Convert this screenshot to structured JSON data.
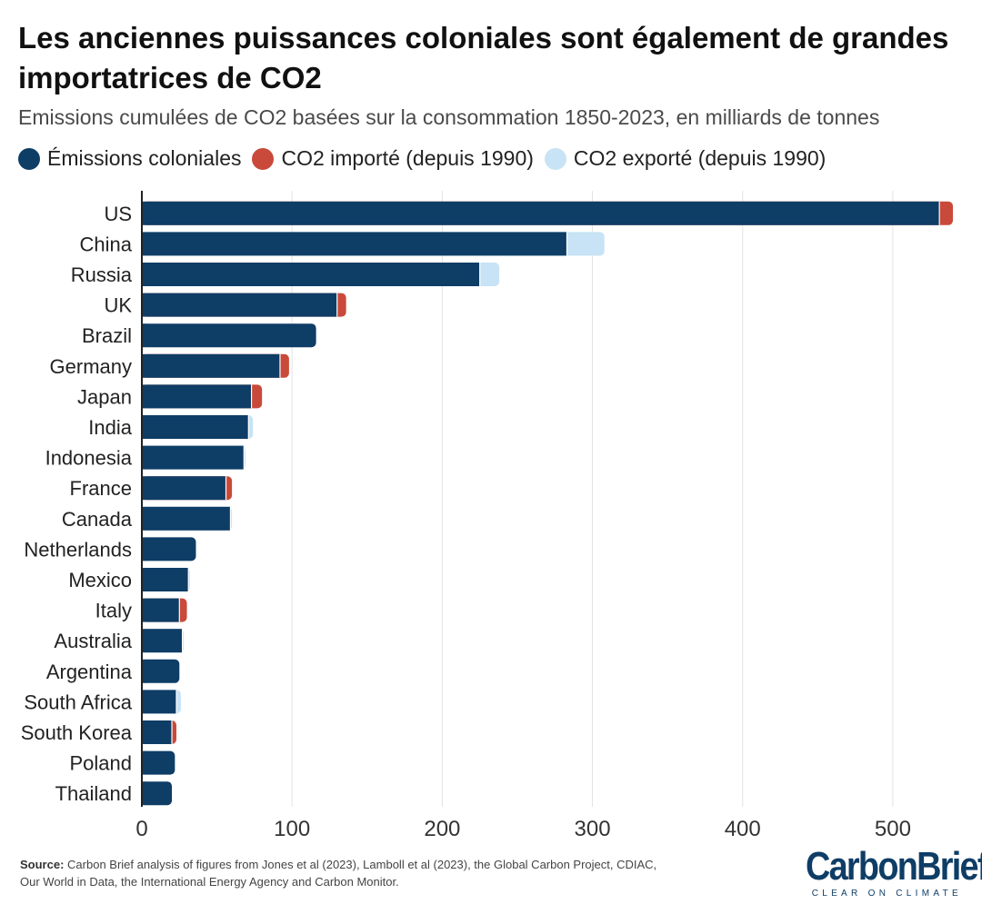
{
  "title": "Les anciennes puissances coloniales sont également de grandes importatrices de CO2",
  "subtitle": "Emissions cumulées de CO2 basées sur la consommation 1850-2023, en milliards de tonnes",
  "legend": [
    {
      "label": "Émissions coloniales",
      "color": "#0e3d66"
    },
    {
      "label": "CO2 importé (depuis 1990)",
      "color": "#c94a3a"
    },
    {
      "label": "CO2 exporté (depuis 1990)",
      "color": "#c7e3f5"
    }
  ],
  "colors": {
    "colonial": "#0e3d66",
    "imported": "#c94a3a",
    "exported": "#c7e3f5",
    "grid": "#e3e3e3",
    "axis": "#222222"
  },
  "source": {
    "label": "Source:",
    "text": "Carbon Brief analysis of figures from Jones et al (2023), Lamboll et al (2023), the Global Carbon Project, CDIAC, Our World in Data, the International Energy Agency and Carbon Monitor."
  },
  "logo": {
    "name": "CarbonBrief",
    "tagline": "CLEAR ON CLIMATE"
  },
  "chart_data": {
    "type": "bar",
    "orientation": "horizontal",
    "stacked": true,
    "title": "Les anciennes puissances coloniales sont également de grandes importatrices de CO2",
    "xlabel": "",
    "ylabel": "",
    "xlim": [
      0,
      540
    ],
    "xticks": [
      0,
      100,
      200,
      300,
      400,
      500
    ],
    "grid": true,
    "categories": [
      "US",
      "China",
      "Russia",
      "UK",
      "Brazil",
      "Germany",
      "Japan",
      "India",
      "Indonesia",
      "France",
      "Canada",
      "Netherlands",
      "Mexico",
      "Italy",
      "Australia",
      "Argentina",
      "South Africa",
      "South Korea",
      "Poland",
      "Thailand"
    ],
    "series": [
      {
        "name": "Émissions coloniales",
        "color": "#0e3d66",
        "values": [
          531,
          283,
          225,
          130,
          116,
          92,
          73,
          71,
          68,
          56,
          59,
          36,
          31,
          25,
          27,
          25,
          23,
          20,
          22,
          20
        ]
      },
      {
        "name": "CO2 importé (depuis 1990)",
        "color": "#c94a3a",
        "values": [
          9,
          0,
          0,
          6,
          0,
          6,
          7,
          0,
          0,
          4,
          0,
          0,
          0,
          5,
          0,
          0,
          0,
          3,
          0,
          0
        ]
      },
      {
        "name": "CO2 exporté (depuis 1990)",
        "color": "#c7e3f5",
        "values": [
          0,
          25,
          13,
          0,
          0,
          0,
          0,
          3,
          1,
          0,
          1,
          0,
          1,
          0,
          1,
          0,
          3,
          0,
          0,
          0
        ]
      }
    ]
  }
}
